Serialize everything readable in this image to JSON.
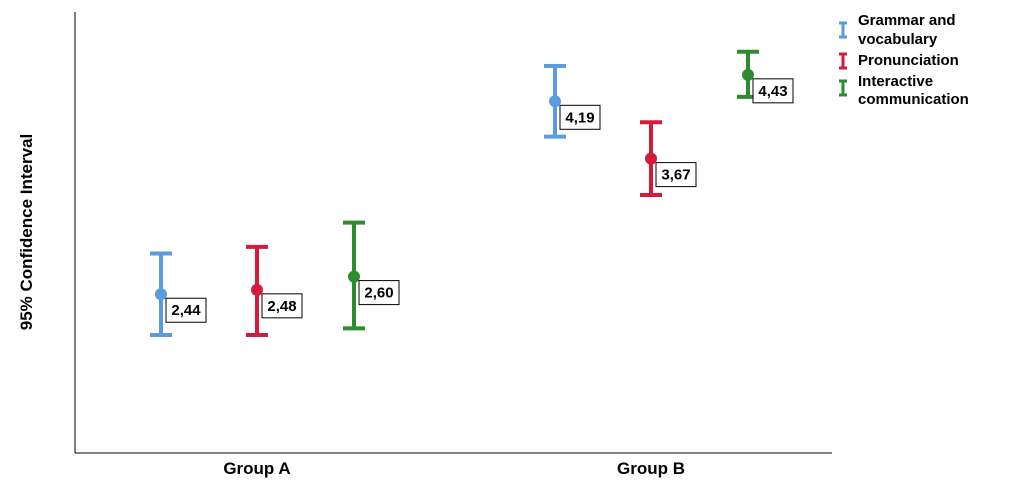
{
  "chart_data": {
    "type": "errorbar",
    "title": "",
    "ylabel": "95% Confidence Interval",
    "xlabel": "",
    "categories": [
      "Group A",
      "Group B"
    ],
    "ylim": [
      1.0,
      5.0
    ],
    "grid": false,
    "legend_position": "top-right",
    "series": [
      {
        "name": "Grammar and vocabulary",
        "color": "#5B9BE0",
        "means": [
          2.44,
          4.19
        ],
        "lower": [
          2.07,
          3.87
        ],
        "upper": [
          2.81,
          4.51
        ],
        "labels": [
          "2,44",
          "4,19"
        ]
      },
      {
        "name": "Pronunciation",
        "color": "#D61A3C",
        "means": [
          2.48,
          3.67
        ],
        "lower": [
          2.07,
          3.34
        ],
        "upper": [
          2.87,
          4.0
        ],
        "labels": [
          "2,48",
          "3,67"
        ]
      },
      {
        "name": "Interactive communication",
        "color": "#2E8B2E",
        "means": [
          2.6,
          4.43
        ],
        "lower": [
          2.13,
          4.23
        ],
        "upper": [
          3.09,
          4.64
        ],
        "labels": [
          "2,60",
          "4,43"
        ]
      }
    ],
    "legend": [
      {
        "lines": [
          "Grammar and",
          "vocabulary"
        ],
        "color": "#5B9BE0"
      },
      {
        "lines": [
          "Pronunciation"
        ],
        "color": "#D61A3C"
      },
      {
        "lines": [
          "Interactive",
          "communication"
        ],
        "color": "#2E8B2E"
      }
    ]
  }
}
